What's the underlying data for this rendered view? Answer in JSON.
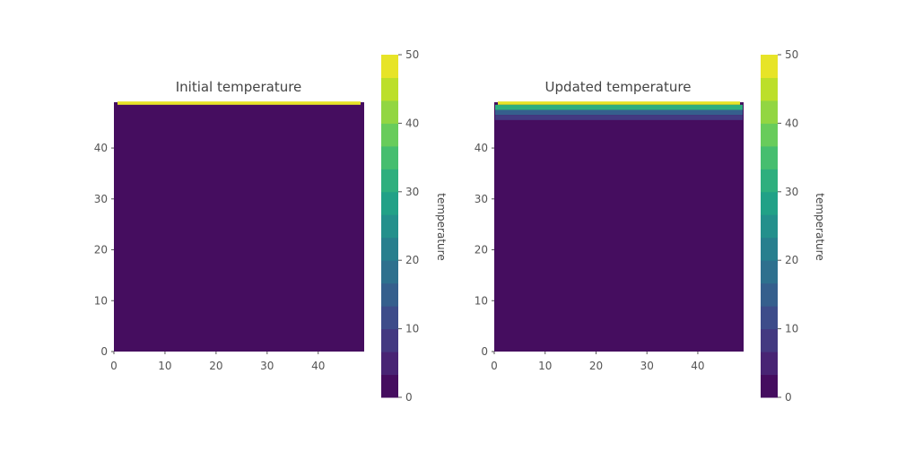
{
  "chart_data": [
    {
      "type": "heatmap",
      "title": "Initial temperature",
      "xlabel": "",
      "ylabel": "",
      "xlim": [
        0,
        49
      ],
      "ylim": [
        0,
        49
      ],
      "x_ticks": [
        "0",
        "10",
        "20",
        "30",
        "40"
      ],
      "y_ticks": [
        "0",
        "10",
        "20",
        "30",
        "40"
      ],
      "grid_size": 50,
      "background_value": 0,
      "top_rows": [
        {
          "row": 49,
          "value": 50
        }
      ],
      "colorbar": {
        "label": "temperature",
        "range": [
          0,
          50
        ],
        "ticks": [
          "0",
          "10",
          "20",
          "30",
          "40",
          "50"
        ],
        "levels": 15,
        "colormap": "viridis"
      }
    },
    {
      "type": "heatmap",
      "title": "Updated temperature",
      "xlabel": "",
      "ylabel": "",
      "xlim": [
        0,
        49
      ],
      "ylim": [
        0,
        49
      ],
      "x_ticks": [
        "0",
        "10",
        "20",
        "30",
        "40"
      ],
      "y_ticks": [
        "0",
        "10",
        "20",
        "30",
        "40"
      ],
      "grid_size": 50,
      "background_value": 0,
      "top_rows": [
        {
          "row": 49,
          "value": 50
        },
        {
          "row": 48,
          "value": 30
        },
        {
          "row": 47,
          "value": 16
        },
        {
          "row": 46,
          "value": 8
        }
      ],
      "colorbar": {
        "label": "temperature",
        "range": [
          0,
          50
        ],
        "ticks": [
          "0",
          "10",
          "20",
          "30",
          "40",
          "50"
        ],
        "levels": 15,
        "colormap": "viridis"
      }
    }
  ],
  "colors": {
    "viridis_stops": [
      "#440154",
      "#482878",
      "#3e4989",
      "#31688e",
      "#26828e",
      "#1f9e89",
      "#35b779",
      "#6ece58",
      "#b5de2b",
      "#fde725"
    ],
    "text": "#444444"
  }
}
